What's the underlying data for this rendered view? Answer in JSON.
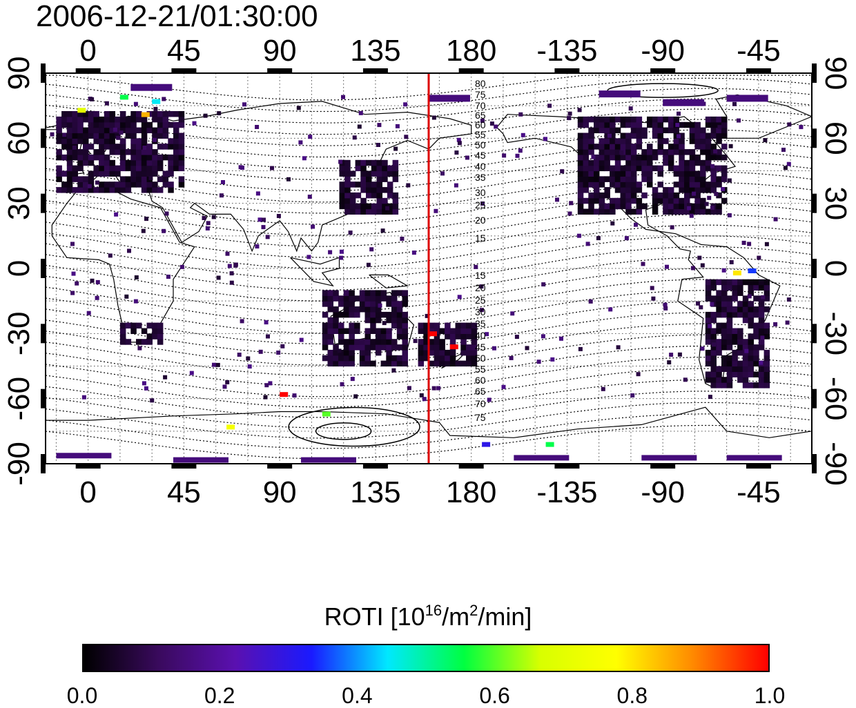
{
  "title": "2006-12-21/01:30:00",
  "colorbar": {
    "title_main": "ROTI  [10",
    "title_sup1": "16",
    "title_mid": "/m",
    "title_sup2": "2",
    "title_end": "/min]",
    "ticks": [
      "0.0",
      "0.2",
      "0.4",
      "0.6",
      "0.8",
      "1.0"
    ],
    "range": [
      0.0,
      1.0
    ],
    "colors": [
      "#000000",
      "#3a0a5e",
      "#5a10b0",
      "#1a1aff",
      "#00e8ff",
      "#00ff40",
      "#d8ff00",
      "#ffff00",
      "#ff8a00",
      "#ff0000"
    ]
  },
  "map": {
    "projection": "equirectangular",
    "lon_ticks": [
      "0",
      "45",
      "90",
      "135",
      "180",
      "-135",
      "-90",
      "-45"
    ],
    "lat_ticks": [
      "90",
      "60",
      "30",
      "0",
      "-30",
      "-60",
      "-90"
    ],
    "right_lat_ticks": [
      "90",
      "60",
      "30",
      "0",
      "-30",
      "-60",
      "-90"
    ],
    "grid": true,
    "meridian_marker_lon": 160,
    "meridian_marker_color": "#dd0000",
    "contour_labels_north": [
      "80",
      "75",
      "70",
      "65",
      "60",
      "55",
      "50",
      "45",
      "40",
      "35",
      "30",
      "25",
      "20",
      "15"
    ],
    "contour_labels_south": [
      "15",
      "20",
      "25",
      "30",
      "35",
      "40",
      "45",
      "50",
      "55",
      "60",
      "65",
      "70",
      "75"
    ]
  },
  "chart_data": {
    "type": "heatmap",
    "title": "2006-12-21/01:30:00",
    "xlabel": "",
    "ylabel": "",
    "xlim": [
      -20,
      340
    ],
    "ylim": [
      -90,
      90
    ],
    "colorbar_label": "ROTI  [10^16/m^2/min]",
    "colorbar_range": [
      0.0,
      1.0
    ],
    "regions_lowvalue": [
      {
        "name_lon": [
          -15,
          45
        ],
        "name_lat": [
          35,
          72
        ],
        "roti": 0.05
      },
      {
        "name_lon": [
          230,
          300
        ],
        "name_lat": [
          25,
          70
        ],
        "roti": 0.05
      },
      {
        "name_lon": [
          290,
          320
        ],
        "name_lat": [
          -55,
          -5
        ],
        "roti": 0.05
      },
      {
        "name_lon": [
          155,
          182
        ],
        "name_lat": [
          -45,
          -25
        ],
        "roti": 0.05
      },
      {
        "name_lon": [
          110,
          150
        ],
        "name_lat": [
          -45,
          -10
        ],
        "roti": 0.05
      },
      {
        "name_lon": [
          118,
          145
        ],
        "name_lat": [
          25,
          50
        ],
        "roti": 0.05
      },
      {
        "name_lon": [
          15,
          35
        ],
        "name_lat": [
          -35,
          -25
        ],
        "roti": 0.05
      }
    ],
    "highlights": [
      {
        "lon": 15,
        "lat": 80,
        "roti": 0.55
      },
      {
        "lon": 30,
        "lat": 78,
        "roti": 0.45
      },
      {
        "lon": -5,
        "lat": 74,
        "roti": 0.7
      },
      {
        "lon": 25,
        "lat": 72,
        "roti": 0.85
      },
      {
        "lon": 90,
        "lat": -57,
        "roti": 1.0
      },
      {
        "lon": 110,
        "lat": -66,
        "roti": 0.6
      },
      {
        "lon": 65,
        "lat": -72,
        "roti": 0.75
      },
      {
        "lon": 160,
        "lat": -29,
        "roti": 1.0
      },
      {
        "lon": 170,
        "lat": -35,
        "roti": 1.0
      },
      {
        "lon": 185,
        "lat": -80,
        "roti": 0.3
      },
      {
        "lon": 215,
        "lat": -80,
        "roti": 0.55
      },
      {
        "lon": 310,
        "lat": 0,
        "roti": 0.35
      },
      {
        "lon": 303,
        "lat": -1,
        "roti": 0.8
      }
    ]
  }
}
